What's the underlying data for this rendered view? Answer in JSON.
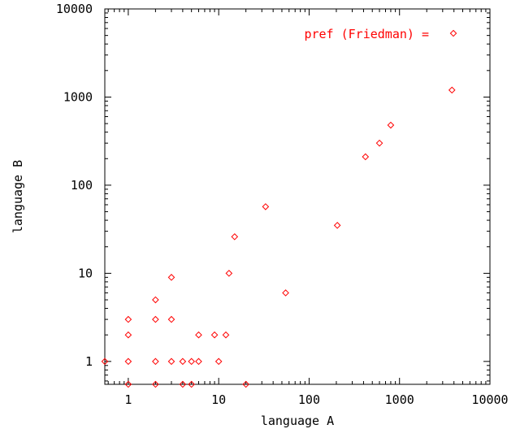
{
  "chart_data": {
    "type": "scatter",
    "xlabel": "language A",
    "ylabel": "language B",
    "x_scale": "log",
    "y_scale": "log",
    "xlim": [
      0.55,
      10000
    ],
    "ylim": [
      0.55,
      10000
    ],
    "x_ticks": [
      1,
      10,
      100,
      1000,
      10000
    ],
    "x_tick_labels": [
      "1",
      "10",
      "100",
      "1000",
      "10000"
    ],
    "y_ticks": [
      1,
      10,
      100,
      1000,
      10000
    ],
    "y_tick_labels": [
      "1",
      "10",
      "100",
      "1000",
      "10000"
    ],
    "grid": false,
    "legend_position": "top-right",
    "series": [
      {
        "name": "pref (Friedman) =",
        "color": "#ff0000",
        "marker": "diamond",
        "points": [
          [
            0.55,
            1
          ],
          [
            1,
            0.55
          ],
          [
            1,
            1
          ],
          [
            1,
            2
          ],
          [
            1,
            3
          ],
          [
            2,
            0.55
          ],
          [
            2,
            1
          ],
          [
            2,
            3
          ],
          [
            2,
            5
          ],
          [
            3,
            1
          ],
          [
            3,
            3
          ],
          [
            3,
            9
          ],
          [
            4,
            0.55
          ],
          [
            4,
            1
          ],
          [
            5,
            0.55
          ],
          [
            5,
            1
          ],
          [
            6,
            1
          ],
          [
            6,
            2
          ],
          [
            9,
            2
          ],
          [
            10,
            1
          ],
          [
            12,
            2
          ],
          [
            13,
            10
          ],
          [
            15,
            26
          ],
          [
            20,
            0.55
          ],
          [
            33,
            57
          ],
          [
            55,
            6
          ],
          [
            205,
            35
          ],
          [
            420,
            210
          ],
          [
            600,
            300
          ],
          [
            800,
            480
          ],
          [
            3800,
            1200
          ]
        ]
      }
    ]
  }
}
